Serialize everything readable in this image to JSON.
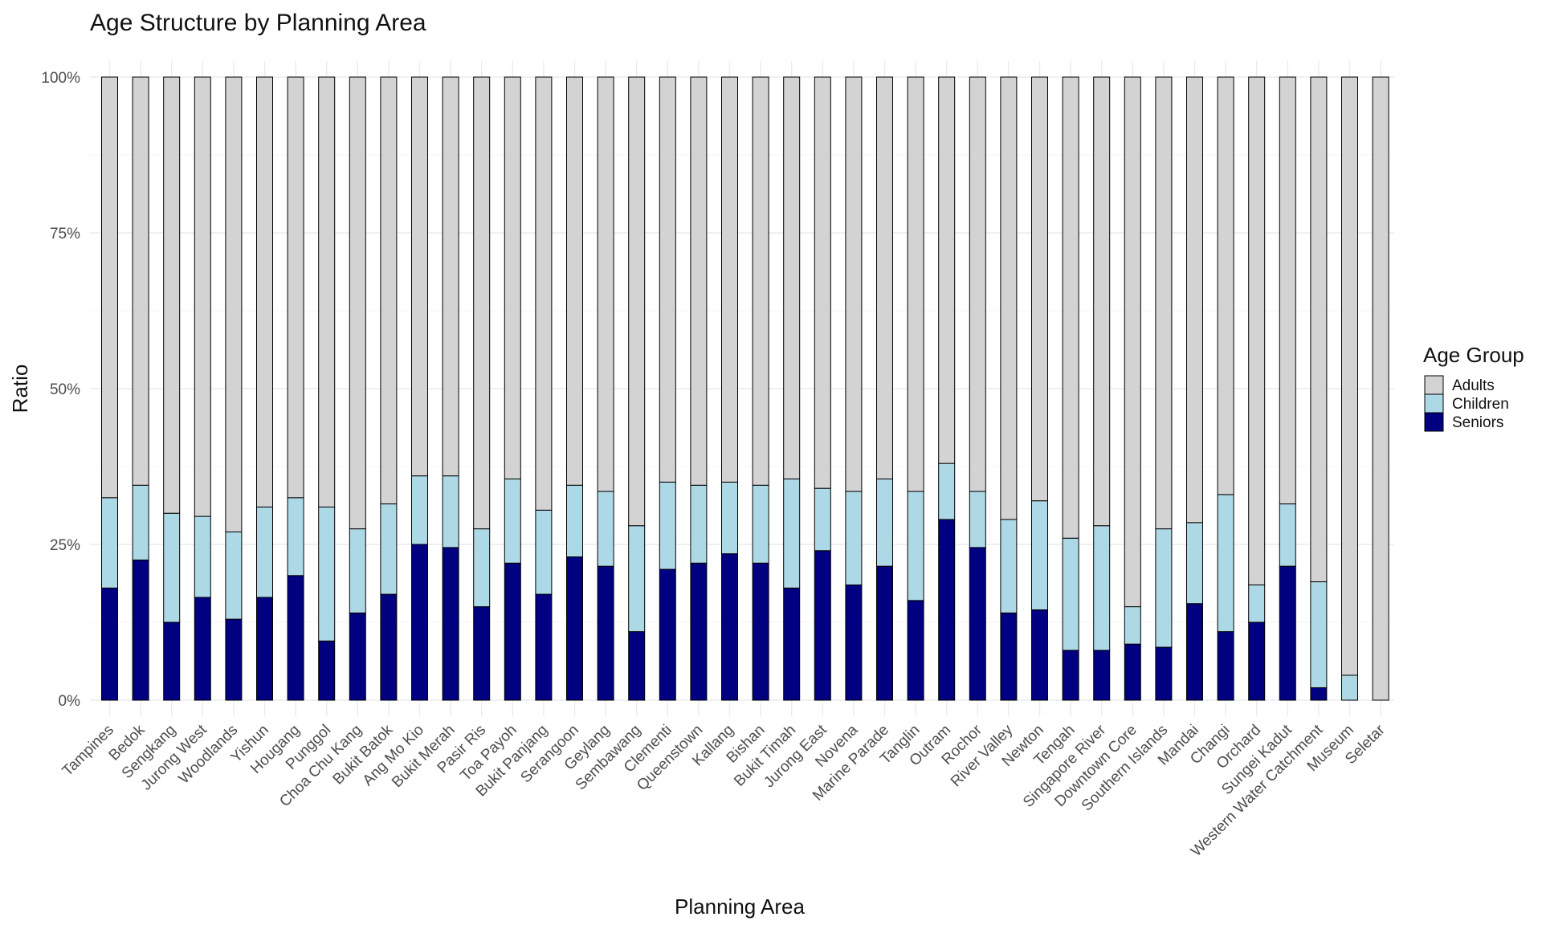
{
  "chart_data": {
    "type": "bar",
    "stacked": true,
    "normalized": true,
    "title": "Age Structure by Planning Area",
    "xlabel": "Planning Area",
    "ylabel": "Ratio",
    "ylim": [
      0,
      1
    ],
    "y_ticks": [
      0,
      0.25,
      0.5,
      0.75,
      1.0
    ],
    "y_tick_labels": [
      "0%",
      "25%",
      "50%",
      "75%",
      "100%"
    ],
    "grid": true,
    "legend": {
      "title": "Age Group",
      "position": "right",
      "entries": [
        "Adults",
        "Children",
        "Seniors"
      ]
    },
    "categories": [
      "Tampines",
      "Bedok",
      "Sengkang",
      "Jurong West",
      "Woodlands",
      "Yishun",
      "Hougang",
      "Punggol",
      "Choa Chu Kang",
      "Bukit Batok",
      "Ang Mo Kio",
      "Bukit Merah",
      "Pasir Ris",
      "Toa Payoh",
      "Bukit Panjang",
      "Serangoon",
      "Geylang",
      "Sembawang",
      "Clementi",
      "Queenstown",
      "Kallang",
      "Bishan",
      "Bukit Timah",
      "Jurong East",
      "Novena",
      "Marine Parade",
      "Tanglin",
      "Outram",
      "Rochor",
      "River Valley",
      "Newton",
      "Tengah",
      "Singapore River",
      "Downtown Core",
      "Southern Islands",
      "Mandai",
      "Changi",
      "Orchard",
      "Sungei Kadut",
      "Western Water Catchment",
      "Museum",
      "Seletar"
    ],
    "series": [
      {
        "name": "Seniors",
        "color": "#000080",
        "values": [
          0.18,
          0.225,
          0.125,
          0.165,
          0.13,
          0.165,
          0.2,
          0.095,
          0.14,
          0.17,
          0.25,
          0.245,
          0.15,
          0.22,
          0.17,
          0.23,
          0.215,
          0.11,
          0.21,
          0.22,
          0.235,
          0.22,
          0.18,
          0.24,
          0.185,
          0.215,
          0.16,
          0.29,
          0.245,
          0.14,
          0.145,
          0.08,
          0.08,
          0.09,
          0.085,
          0.155,
          0.11,
          0.125,
          0.215,
          0.02,
          0.0,
          0.0
        ]
      },
      {
        "name": "Children",
        "color": "#add8e6",
        "values": [
          0.145,
          0.12,
          0.175,
          0.13,
          0.14,
          0.145,
          0.125,
          0.215,
          0.135,
          0.145,
          0.11,
          0.115,
          0.125,
          0.135,
          0.135,
          0.115,
          0.12,
          0.17,
          0.14,
          0.125,
          0.115,
          0.125,
          0.175,
          0.1,
          0.15,
          0.14,
          0.175,
          0.09,
          0.09,
          0.15,
          0.175,
          0.18,
          0.2,
          0.06,
          0.19,
          0.13,
          0.22,
          0.06,
          0.1,
          0.17,
          0.04,
          0.0
        ]
      },
      {
        "name": "Adults",
        "color": "#d3d3d3",
        "values": [
          0.675,
          0.655,
          0.7,
          0.705,
          0.73,
          0.69,
          0.675,
          0.69,
          0.725,
          0.685,
          0.64,
          0.64,
          0.725,
          0.645,
          0.695,
          0.655,
          0.665,
          0.72,
          0.65,
          0.655,
          0.65,
          0.655,
          0.645,
          0.66,
          0.665,
          0.645,
          0.665,
          0.62,
          0.665,
          0.71,
          0.68,
          0.74,
          0.72,
          0.85,
          0.725,
          0.715,
          0.67,
          0.815,
          0.685,
          0.81,
          0.96,
          1.0
        ]
      }
    ]
  }
}
